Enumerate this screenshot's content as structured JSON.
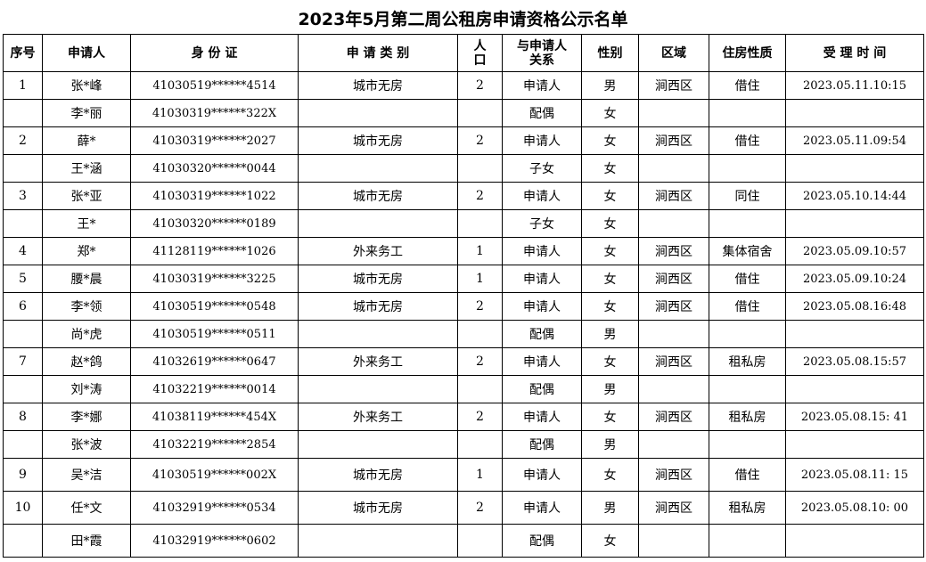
{
  "title": "2023年5月第二周公租房申请资格公示名单",
  "headers": [
    "序号",
    "申请人",
    "身 份 证",
    "申 请 类 别",
    "人\n口",
    "与申请人\n关系",
    "性别",
    "区域",
    "住房性质",
    "受 理 时 间"
  ],
  "rows": [
    [
      "1",
      "张*峰",
      "41030519******4514",
      "城市无房",
      "2",
      "申请人",
      "男",
      "涧西区",
      "借住",
      "2023.05.11.10:15"
    ],
    [
      "",
      "李*丽",
      "41030319******322X",
      "",
      "",
      "配偶",
      "女",
      "",
      "",
      ""
    ],
    [
      "2",
      "薛*",
      "41030319******2027",
      "城市无房",
      "2",
      "申请人",
      "女",
      "涧西区",
      "借住",
      "2023.05.11.09:54"
    ],
    [
      "",
      "王*涵",
      "41030320******0044",
      "",
      "",
      "子女",
      "女",
      "",
      "",
      ""
    ],
    [
      "3",
      "张*亚",
      "41030319******1022",
      "城市无房",
      "2",
      "申请人",
      "女",
      "涧西区",
      "同住",
      "2023.05.10.14:44"
    ],
    [
      "",
      "王*",
      "41030320******0189",
      "",
      "",
      "子女",
      "女",
      "",
      "",
      ""
    ],
    [
      "4",
      "郑*",
      "41128119******1026",
      "外来务工",
      "1",
      "申请人",
      "女",
      "涧西区",
      "集体宿舍",
      "2023.05.09.10:57"
    ],
    [
      "5",
      "腰*晨",
      "41030319******3225",
      "城市无房",
      "1",
      "申请人",
      "女",
      "涧西区",
      "借住",
      "2023.05.09.10:24"
    ],
    [
      "6",
      "李*领",
      "41030519******0548",
      "城市无房",
      "2",
      "申请人",
      "女",
      "涧西区",
      "借住",
      "2023.05.08.16:48"
    ],
    [
      "",
      "尚*虎",
      "41030519******0511",
      "",
      "",
      "配偶",
      "男",
      "",
      "",
      ""
    ],
    [
      "7",
      "赵*鸽",
      "41032619******0647",
      "外来务工",
      "2",
      "申请人",
      "女",
      "涧西区",
      "租私房",
      "2023.05.08.15:57"
    ],
    [
      "",
      "刘*涛",
      "41032219******0014",
      "",
      "",
      "配偶",
      "男",
      "",
      "",
      ""
    ],
    [
      "8",
      "李*娜",
      "41038119******454X",
      "外来务工",
      "2",
      "申请人",
      "女",
      "涧西区",
      "租私房",
      "2023.05.08.15: 41"
    ],
    [
      "",
      "张*波",
      "41032219******2854",
      "",
      "",
      "配偶",
      "男",
      "",
      "",
      ""
    ],
    [
      "9",
      "吴*洁",
      "41030519******002X",
      "城市无房",
      "1",
      "申请人",
      "女",
      "涧西区",
      "借住",
      "2023.05.08.11: 15"
    ],
    [
      "10",
      "任*文",
      "41032919******0534",
      "城市无房",
      "2",
      "申请人",
      "男",
      "涧西区",
      "租私房",
      "2023.05.08.10: 00"
    ],
    [
      "",
      "田*霞",
      "41032919******0602",
      "",
      "",
      "配偶",
      "女",
      "",
      "",
      ""
    ]
  ]
}
